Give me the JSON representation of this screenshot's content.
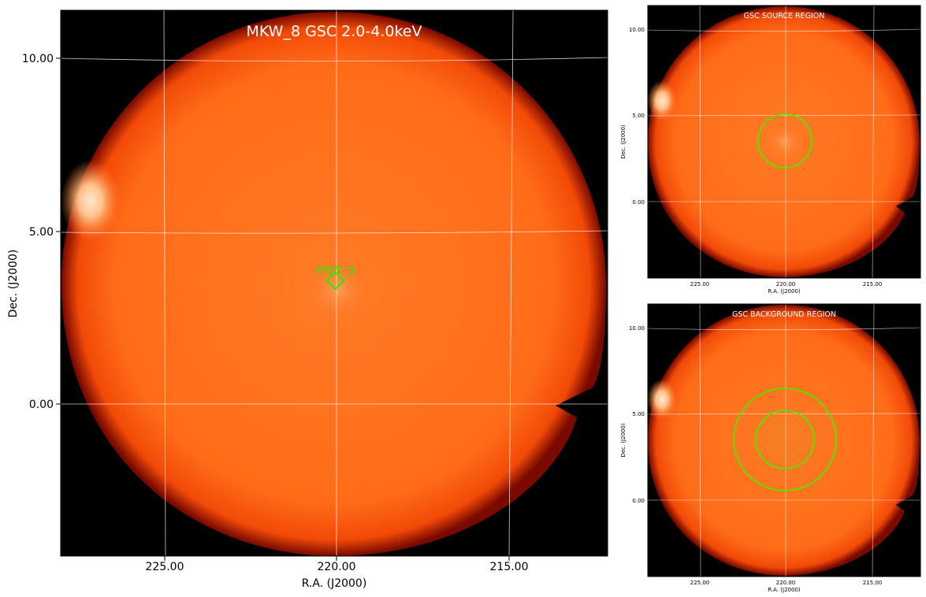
{
  "main_panel": {
    "title": "MKW_8 GSC 2.0-4.0keV",
    "xlabel": "R.A. (J2000)",
    "ylabel": "Dec. (J2000)",
    "x_ticks": [
      "225.00",
      "220.00",
      "215.00"
    ],
    "y_ticks": [
      "10.00",
      "5.00",
      "0.00"
    ],
    "source_label": "MKW_8"
  },
  "source_panel": {
    "title": "GSC SOURCE REGION",
    "xlabel": "R.A. (J2000)",
    "ylabel": "Dec. (J2000)",
    "x_ticks": [
      "225.00",
      "220.00",
      "215.00"
    ],
    "y_ticks": [
      "10.00",
      "5.00",
      "0.00"
    ]
  },
  "background_panel": {
    "title": "GSC BACKGROUND REGION",
    "xlabel": "R.A. (J2000)",
    "ylabel": "Dec. (J2000)",
    "x_ticks": [
      "225.00",
      "220.00",
      "215.00"
    ],
    "y_ticks": [
      "10.00",
      "5.00",
      "0.00"
    ]
  },
  "colors": {
    "image_fill": "#ff6a14",
    "image_edge": "#8a0e00",
    "region": "#5de000",
    "grid": "#ffffff"
  }
}
